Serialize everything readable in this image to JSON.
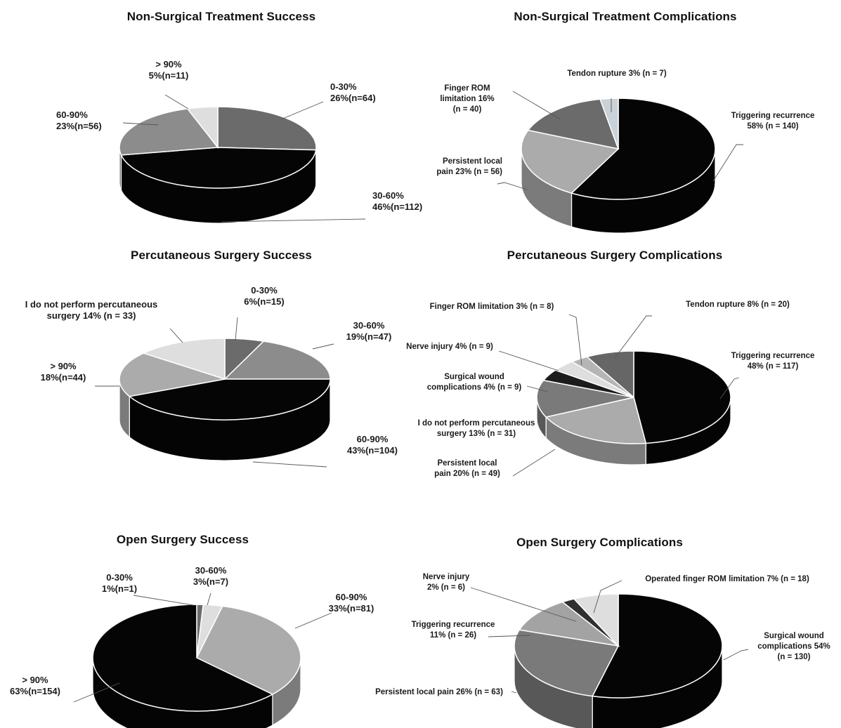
{
  "chart_data": [
    {
      "id": "nonsurg-success",
      "type": "pie",
      "title": "Non-Surgical Treatment Success",
      "slices": [
        {
          "category": "0-30%",
          "percent": 26,
          "n": 64,
          "label": [
            "0-30%",
            "26%(n=64)"
          ],
          "color": "#6b6b6b"
        },
        {
          "category": "30-60%",
          "percent": 46,
          "n": 112,
          "label": [
            "30-60%",
            "46%(n=112)"
          ],
          "color": "#050505"
        },
        {
          "category": "60-90%",
          "percent": 23,
          "n": 56,
          "label": [
            "60-90%",
            "23%(n=56)"
          ],
          "color": "#8c8c8c"
        },
        {
          "category": "> 90%",
          "percent": 5,
          "n": 11,
          "label": [
            "> 90%",
            "5%(n=11)"
          ],
          "color": "#dedede"
        }
      ]
    },
    {
      "id": "nonsurg-complications",
      "type": "pie",
      "title": "Non-Surgical Treatment Complications",
      "slices": [
        {
          "category": "Triggering recurrence",
          "percent": 58,
          "n": 140,
          "label": [
            "Triggering recurrence",
            "58% (n = 140)"
          ],
          "color": "#050505"
        },
        {
          "category": "Persistent local pain",
          "percent": 23,
          "n": 56,
          "label": [
            "Persistent local",
            "pain 23% (n = 56)"
          ],
          "color": "#ababab"
        },
        {
          "category": "Finger ROM limitation",
          "percent": 16,
          "n": 40,
          "label": [
            "Finger ROM",
            "limitation 16%",
            "(n = 40)"
          ],
          "color": "#6b6b6b"
        },
        {
          "category": "Tendon rupture",
          "percent": 3,
          "n": 7,
          "label": [
            "Tendon rupture 3% (n = 7)"
          ],
          "color": "#c9d2d8"
        }
      ]
    },
    {
      "id": "perc-success",
      "type": "pie",
      "title": "Percutaneous Surgery Success",
      "slices": [
        {
          "category": "0-30%",
          "percent": 6,
          "n": 15,
          "label": [
            "0-30%",
            "6%(n=15)"
          ],
          "color": "#6b6b6b"
        },
        {
          "category": "30-60%",
          "percent": 19,
          "n": 47,
          "label": [
            "30-60%",
            "19%(n=47)"
          ],
          "color": "#8c8c8c"
        },
        {
          "category": "60-90%",
          "percent": 43,
          "n": 104,
          "label": [
            "60-90%",
            "43%(n=104)"
          ],
          "color": "#050505"
        },
        {
          "category": "> 90%",
          "percent": 18,
          "n": 44,
          "label": [
            "> 90%",
            "18%(n=44)"
          ],
          "color": "#ababab"
        },
        {
          "category": "I do not perform percutaneous surgery",
          "percent": 14,
          "n": 33,
          "label": [
            "I do not perform percutaneous",
            "surgery 14% (n = 33)"
          ],
          "color": "#dedede"
        }
      ]
    },
    {
      "id": "perc-complications",
      "type": "pie",
      "title": "Percutaneous Surgery Complications",
      "slices": [
        {
          "category": "Triggering recurrence",
          "percent": 48,
          "n": 117,
          "label": [
            "Triggering recurrence",
            "48% (n = 117)"
          ],
          "color": "#050505"
        },
        {
          "category": "Persistent local pain",
          "percent": 20,
          "n": 49,
          "label": [
            "Persistent local",
            "pain 20% (n = 49)"
          ],
          "color": "#ababab"
        },
        {
          "category": "I do not perform percutaneous surgery",
          "percent": 13,
          "n": 31,
          "label": [
            "I do not perform percutaneous",
            "surgery 13% (n = 31)"
          ],
          "color": "#7a7a7a"
        },
        {
          "category": "Surgical wound complications",
          "percent": 4,
          "n": 9,
          "label": [
            "Surgical wound",
            "complications 4% (n = 9)"
          ],
          "color": "#1c1c1c"
        },
        {
          "category": "Nerve injury",
          "percent": 4,
          "n": 9,
          "label": [
            "Nerve injury 4% (n = 9)"
          ],
          "color": "#dedede"
        },
        {
          "category": "Finger ROM limitation",
          "percent": 3,
          "n": 8,
          "label": [
            "Finger ROM limitation 3% (n = 8)"
          ],
          "color": "#b5b5b5"
        },
        {
          "category": "Tendon rupture",
          "percent": 8,
          "n": 20,
          "label": [
            "Tendon rupture 8% (n = 20)"
          ],
          "color": "#666666"
        }
      ]
    },
    {
      "id": "open-success",
      "type": "pie",
      "title": "Open Surgery Success",
      "slices": [
        {
          "category": "0-30%",
          "percent": 1,
          "n": 1,
          "label": [
            "0-30%",
            "1%(n=1)"
          ],
          "color": "#6b6b6b"
        },
        {
          "category": "30-60%",
          "percent": 3,
          "n": 7,
          "label": [
            "30-60%",
            "3%(n=7)"
          ],
          "color": "#dedede"
        },
        {
          "category": "60-90%",
          "percent": 33,
          "n": 81,
          "label": [
            "60-90%",
            "33%(n=81)"
          ],
          "color": "#ababab"
        },
        {
          "category": "> 90%",
          "percent": 63,
          "n": 154,
          "label": [
            "> 90%",
            "63%(n=154)"
          ],
          "color": "#050505"
        }
      ]
    },
    {
      "id": "open-complications",
      "type": "pie",
      "title": "Open Surgery Complications",
      "slices": [
        {
          "category": "Surgical wound complications",
          "percent": 54,
          "n": 130,
          "label": [
            "Surgical wound",
            "complications 54%",
            "(n = 130)"
          ],
          "color": "#050505"
        },
        {
          "category": "Persistent local pain",
          "percent": 26,
          "n": 63,
          "label": [
            "Persistent local pain 26% (n = 63)"
          ],
          "color": "#7a7a7a"
        },
        {
          "category": "Triggering recurrence",
          "percent": 11,
          "n": 26,
          "label": [
            "Triggering recurrence",
            "11% (n = 26)"
          ],
          "color": "#a3a3a3"
        },
        {
          "category": "Nerve injury",
          "percent": 2,
          "n": 6,
          "label": [
            "Nerve injury",
            "2% (n = 6)"
          ],
          "color": "#303030"
        },
        {
          "category": "Operated finger ROM limitation",
          "percent": 7,
          "n": 18,
          "label": [
            "Operated finger ROM limitation 7% (n = 18)"
          ],
          "color": "#dedede"
        }
      ]
    }
  ]
}
